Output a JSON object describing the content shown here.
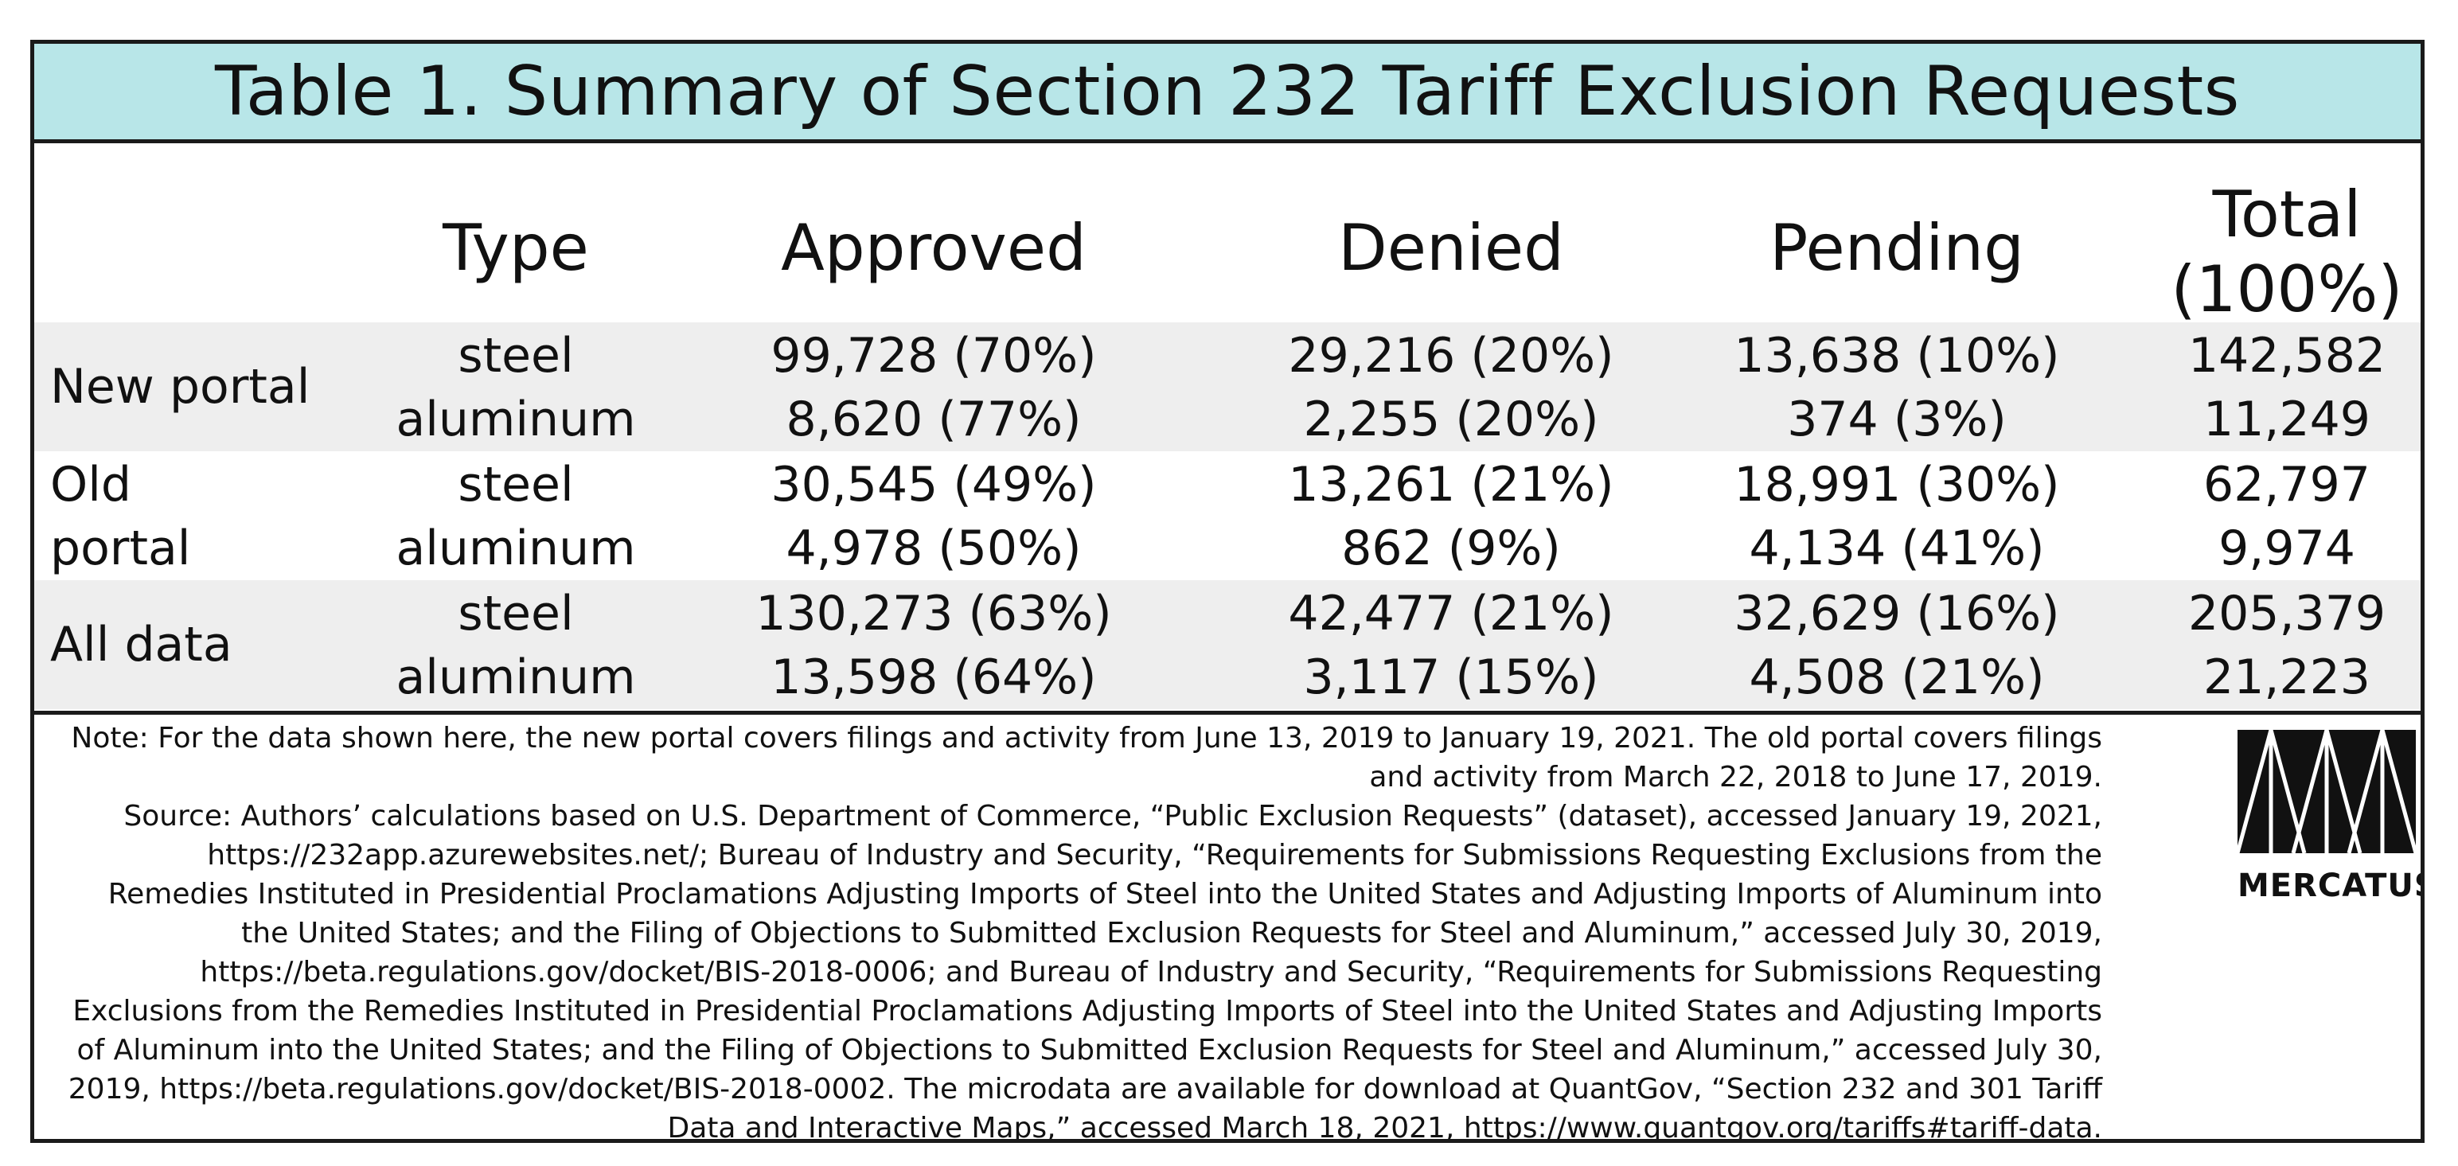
{
  "title": "Table 1. Summary of Section 232 Tariff Exclusion Requests",
  "columns": {
    "type": "Type",
    "approved": "Approved",
    "denied": "Denied",
    "pending": "Pending",
    "total_line1": "Total",
    "total_line2": "(100%)"
  },
  "groups": [
    {
      "label_lines": [
        "New portal"
      ],
      "rows": [
        {
          "type": "steel",
          "approved": "99,728 (70%)",
          "denied": "29,216 (20%)",
          "pending": "13,638 (10%)",
          "total": "142,582"
        },
        {
          "type": "aluminum",
          "approved": "8,620 (77%)",
          "denied": "2,255 (20%)",
          "pending": "374 (3%)",
          "total": "11,249"
        }
      ]
    },
    {
      "label_lines": [
        "Old",
        "portal"
      ],
      "rows": [
        {
          "type": "steel",
          "approved": "30,545 (49%)",
          "denied": "13,261 (21%)",
          "pending": "18,991 (30%)",
          "total": "62,797"
        },
        {
          "type": "aluminum",
          "approved": "4,978 (50%)",
          "denied": "862 (9%)",
          "pending": "4,134 (41%)",
          "total": "9,974"
        }
      ]
    },
    {
      "label_lines": [
        "All data"
      ],
      "rows": [
        {
          "type": "steel",
          "approved": "130,273 (63%)",
          "denied": "42,477 (21%)",
          "pending": "32,629 (16%)",
          "total": "205,379"
        },
        {
          "type": "aluminum",
          "approved": "13,598 (64%)",
          "denied": "3,117 (15%)",
          "pending": "4,508 (21%)",
          "total": "21,223"
        }
      ]
    }
  ],
  "note": "Note: For the data shown here, the new portal covers filings and activity from June 13, 2019 to January 19, 2021. The old portal covers filings and activity from March 22, 2018 to June 17, 2019.",
  "source": "Source: Authors’ calculations based on U.S. Department of Commerce, “Public Exclusion Requests” (dataset), accessed January 19, 2021, https://232app.azurewebsites.net/; Bureau of Industry and Security, “Requirements for Submissions Requesting Exclusions from the Remedies Instituted in Presidential Proclamations Adjusting Imports of Steel into the United States and Adjusting Imports of Aluminum into the United States; and the Filing of Objections to Submitted Exclusion Requests for Steel and Aluminum,” accessed July 30, 2019, https://beta.regulations.gov/docket/BIS-2018-0006; and Bureau of Industry and Security, “Requirements for Submissions Requesting Exclusions from the Remedies Instituted in Presidential Proclamations Adjusting Imports of Steel into the United States and Adjusting Imports of Aluminum into the United States; and the Filing of Objections to Submitted Exclusion Requests for Steel and Aluminum,” accessed July 30, 2019, https://beta.regulations.gov/docket/BIS-2018-0002. The microdata are available for download at QuantGov, “Section 232 and 301 Tariff Data and Interactive Maps,” accessed March 18, 2021, https://www.quantgov.org/tariffs#tariff-data.",
  "logo": {
    "text": "MERCATUS",
    "icon": "mercatus-logo-icon",
    "color": "#111111"
  },
  "colors": {
    "title_background": "#b8e6e8",
    "shaded_row": "#eeeeee",
    "border": "#1a1a1a"
  }
}
